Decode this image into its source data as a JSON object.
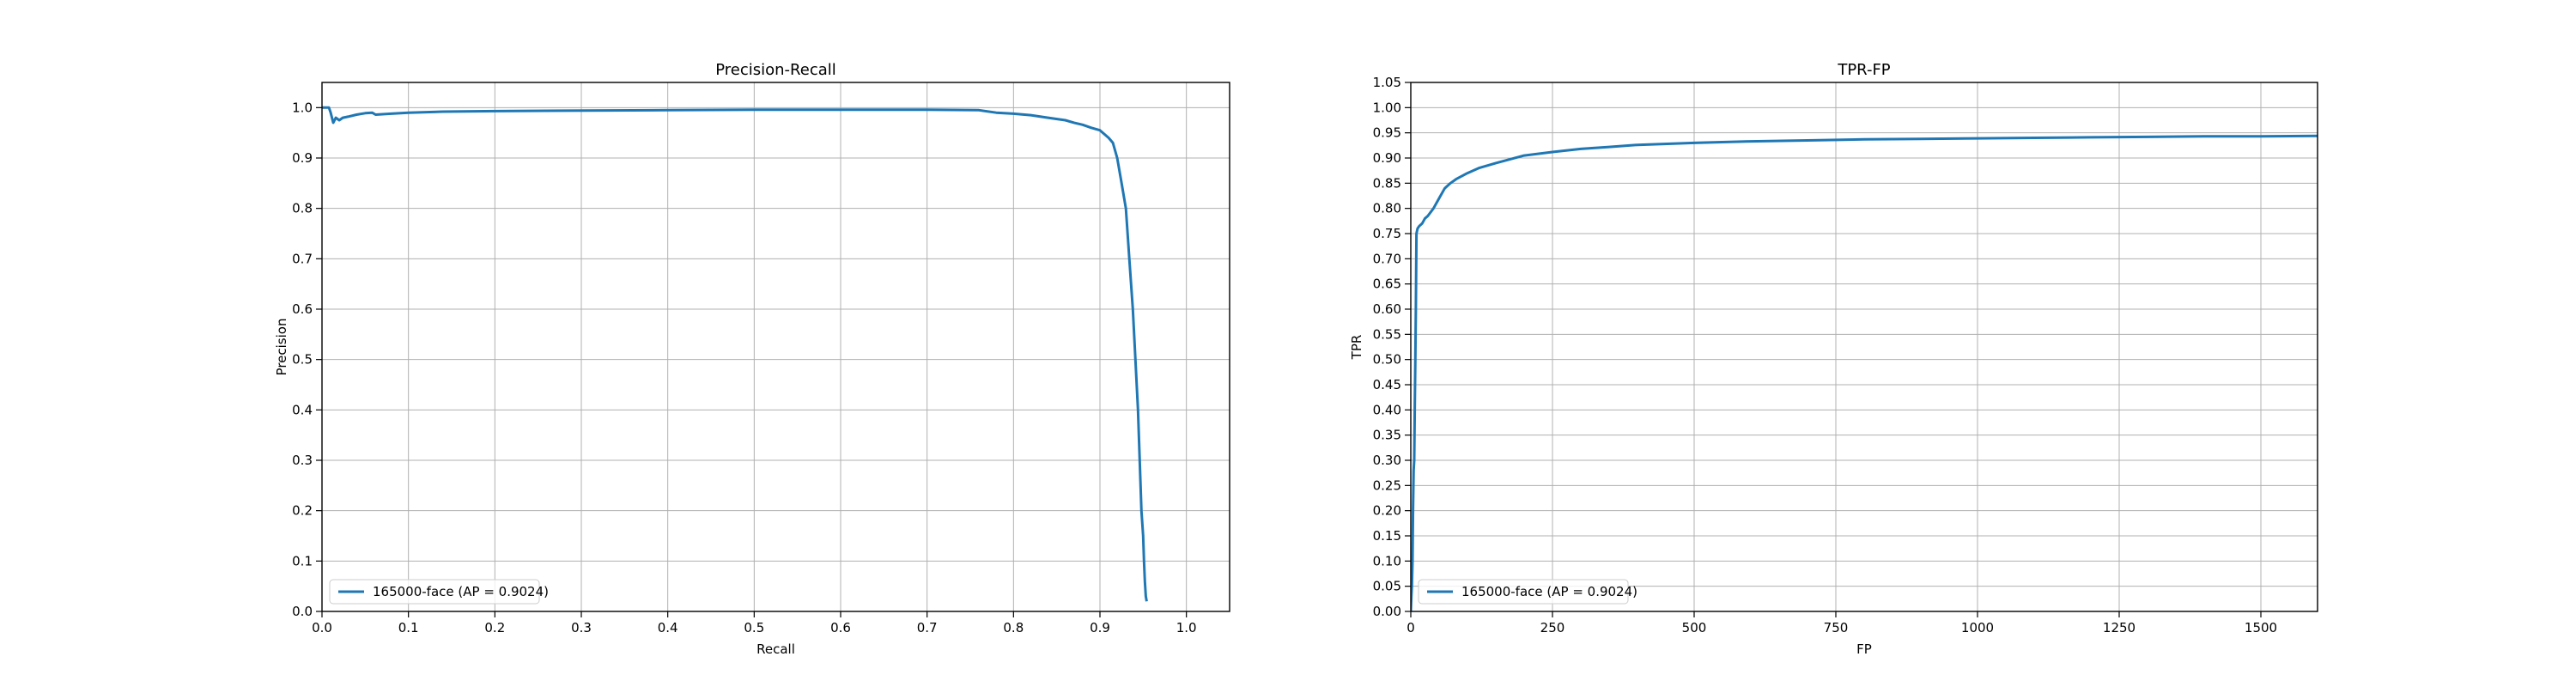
{
  "colors": {
    "line": "#1f77b4",
    "grid": "#b0b0b0",
    "axes": "#000000",
    "background": "#ffffff"
  },
  "chart_data": [
    {
      "type": "line",
      "title": "Precision-Recall",
      "xlabel": "Recall",
      "ylabel": "Precision",
      "xlim": [
        0,
        1.05
      ],
      "ylim": [
        0,
        1.05
      ],
      "xticks": [
        0,
        0.1,
        0.2,
        0.3,
        0.4,
        0.5,
        0.6,
        0.7,
        0.8,
        0.9,
        1.0
      ],
      "yticks": [
        0,
        0.1,
        0.2,
        0.3,
        0.4,
        0.5,
        0.6,
        0.7,
        0.8,
        0.9,
        1.0
      ],
      "xtick_labels": [
        "0.0",
        "0.1",
        "0.2",
        "0.3",
        "0.4",
        "0.5",
        "0.6",
        "0.7",
        "0.8",
        "0.9",
        "1.0"
      ],
      "ytick_labels": [
        "0.0",
        "0.1",
        "0.2",
        "0.3",
        "0.4",
        "0.5",
        "0.6",
        "0.7",
        "0.8",
        "0.9",
        "1.0"
      ],
      "grid": true,
      "legend_position": "lower-left",
      "series": [
        {
          "name": "165000-face (AP = 0.9024)",
          "x": [
            0,
            0.008,
            0.01,
            0.013,
            0.016,
            0.02,
            0.024,
            0.03,
            0.04,
            0.05,
            0.058,
            0.062,
            0.08,
            0.1,
            0.14,
            0.2,
            0.28,
            0.4,
            0.5,
            0.6,
            0.7,
            0.76,
            0.78,
            0.8,
            0.82,
            0.84,
            0.86,
            0.87,
            0.88,
            0.89,
            0.9,
            0.91,
            0.915,
            0.92,
            0.925,
            0.93,
            0.934,
            0.938,
            0.941,
            0.944,
            0.946,
            0.948,
            0.95,
            0.951,
            0.952,
            0.953,
            0.954
          ],
          "y": [
            1.0,
            1.0,
            0.99,
            0.97,
            0.98,
            0.975,
            0.98,
            0.982,
            0.986,
            0.989,
            0.99,
            0.986,
            0.988,
            0.99,
            0.992,
            0.993,
            0.994,
            0.995,
            0.996,
            0.996,
            0.996,
            0.995,
            0.99,
            0.988,
            0.985,
            0.98,
            0.975,
            0.97,
            0.966,
            0.96,
            0.955,
            0.94,
            0.93,
            0.9,
            0.85,
            0.8,
            0.7,
            0.6,
            0.5,
            0.4,
            0.3,
            0.2,
            0.15,
            0.1,
            0.06,
            0.03,
            0.02
          ]
        }
      ]
    },
    {
      "type": "line",
      "title": "TPR-FP",
      "xlabel": "FP",
      "ylabel": "TPR",
      "xlim": [
        0,
        1600
      ],
      "ylim": [
        0,
        1.05
      ],
      "xticks": [
        0,
        250,
        500,
        750,
        1000,
        1250,
        1500
      ],
      "yticks": [
        0,
        0.05,
        0.1,
        0.15,
        0.2,
        0.25,
        0.3,
        0.35,
        0.4,
        0.45,
        0.5,
        0.55,
        0.6,
        0.65,
        0.7,
        0.75,
        0.8,
        0.85,
        0.9,
        0.95,
        1.0,
        1.05
      ],
      "xtick_labels": [
        "0",
        "250",
        "500",
        "750",
        "1000",
        "1250",
        "1500"
      ],
      "ytick_labels": [
        "0.00",
        "0.05",
        "0.10",
        "0.15",
        "0.20",
        "0.25",
        "0.30",
        "0.35",
        "0.40",
        "0.45",
        "0.50",
        "0.55",
        "0.60",
        "0.65",
        "0.70",
        "0.75",
        "0.80",
        "0.85",
        "0.90",
        "0.95",
        "1.00",
        "1.05"
      ],
      "grid": true,
      "legend_position": "lower-left",
      "series": [
        {
          "name": "165000-face (AP = 0.9024)",
          "x": [
            0,
            1,
            2,
            3,
            4,
            5,
            6,
            7,
            8,
            9,
            10,
            12,
            15,
            20,
            25,
            30,
            40,
            50,
            60,
            70,
            80,
            100,
            120,
            150,
            200,
            250,
            300,
            350,
            400,
            500,
            600,
            700,
            800,
            900,
            1000,
            1100,
            1200,
            1300,
            1400,
            1500,
            1600
          ],
          "y": [
            0.0,
            0.03,
            0.05,
            0.1,
            0.2,
            0.28,
            0.3,
            0.4,
            0.5,
            0.6,
            0.75,
            0.76,
            0.765,
            0.77,
            0.78,
            0.785,
            0.8,
            0.82,
            0.84,
            0.85,
            0.858,
            0.87,
            0.88,
            0.89,
            0.905,
            0.912,
            0.918,
            0.922,
            0.926,
            0.93,
            0.933,
            0.935,
            0.937,
            0.938,
            0.939,
            0.94,
            0.941,
            0.942,
            0.943,
            0.943,
            0.944
          ]
        }
      ]
    }
  ]
}
